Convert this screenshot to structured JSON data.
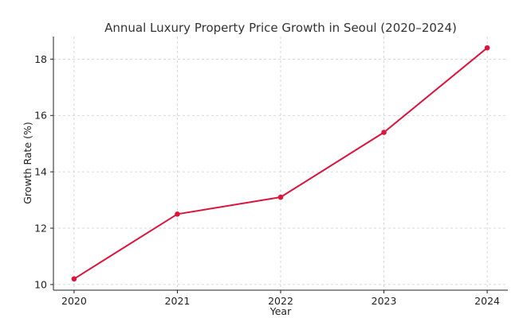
{
  "chart_data": {
    "type": "line",
    "title": "Annual Luxury Property Price Growth in Seoul (2020–2024)",
    "xlabel": "Year",
    "ylabel": "Growth Rate (%)",
    "x": [
      2020,
      2021,
      2022,
      2023,
      2024
    ],
    "x_tick_labels": [
      "2020",
      "2021",
      "2022",
      "2023",
      "2024"
    ],
    "y_ticks": [
      10,
      12,
      14,
      16,
      18
    ],
    "y_tick_labels": [
      "10",
      "12",
      "14",
      "16",
      "18"
    ],
    "ylim": [
      9.8,
      18.8
    ],
    "xlim": [
      2019.8,
      2024.2
    ],
    "grid": true,
    "series": [
      {
        "values": [
          10.2,
          12.5,
          13.1,
          15.4,
          18.4
        ],
        "color": "#dc143c"
      }
    ]
  }
}
